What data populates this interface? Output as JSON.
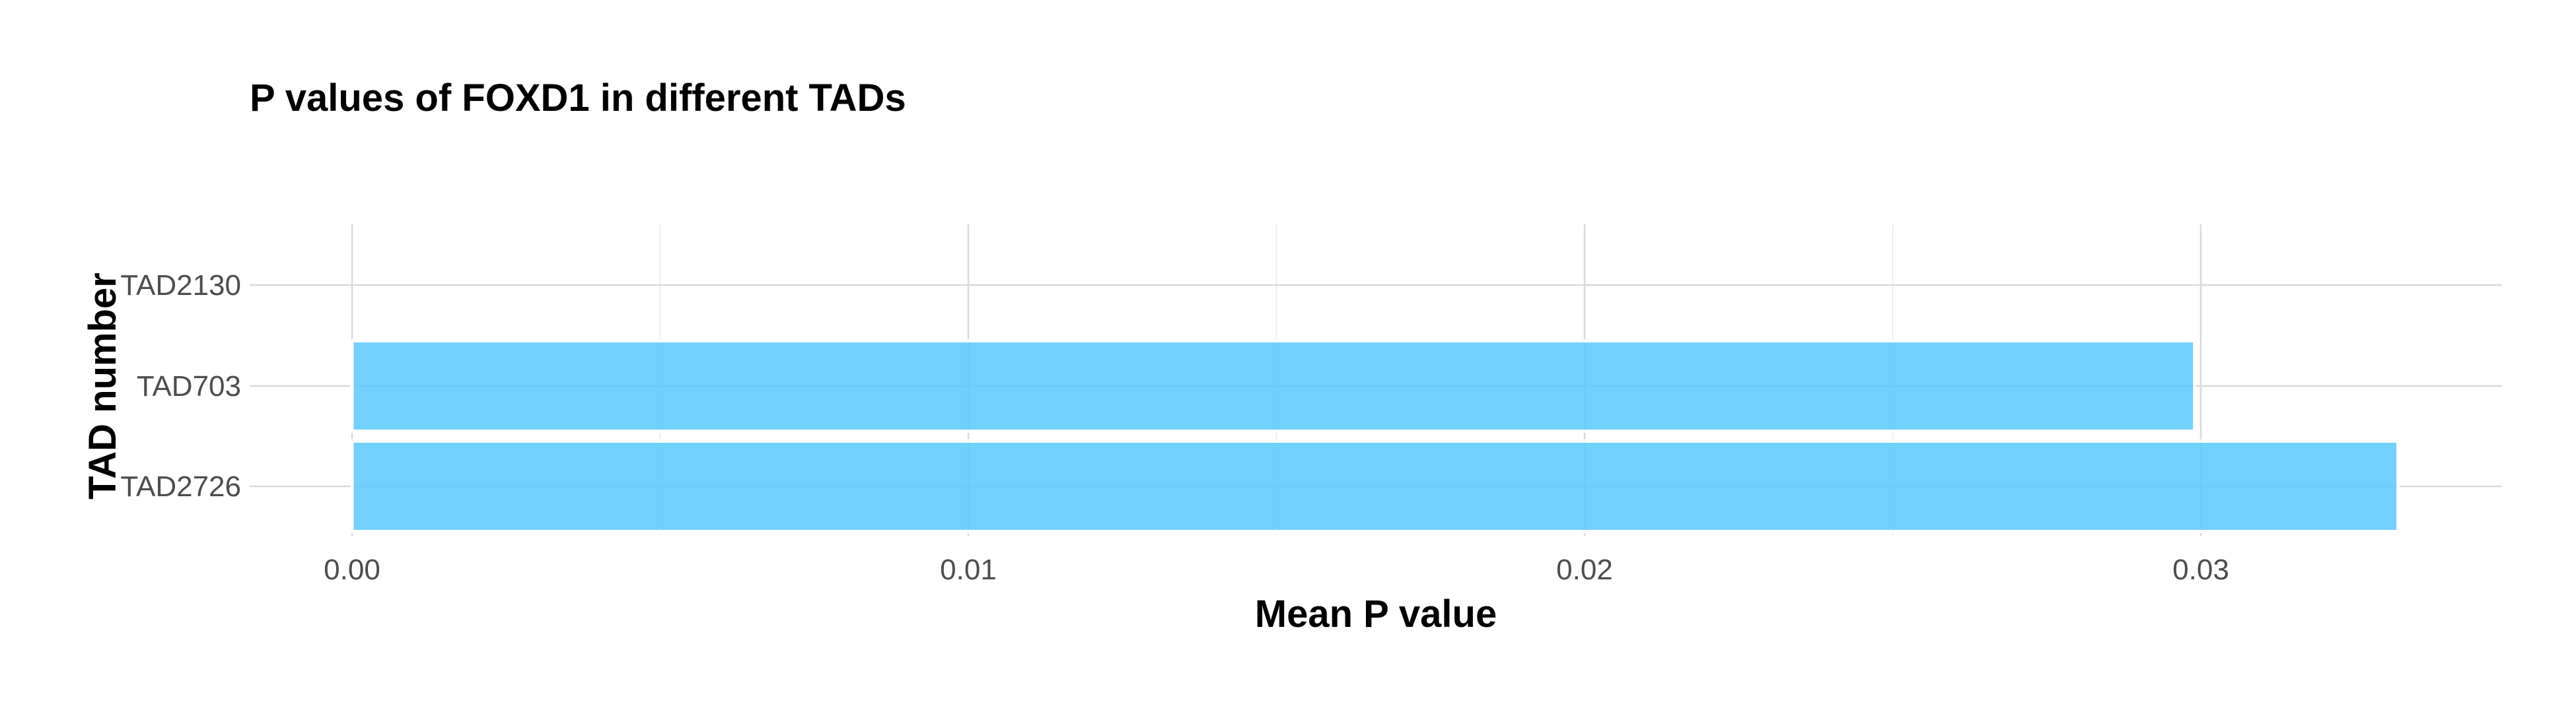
{
  "chart_data": {
    "type": "bar",
    "orientation": "horizontal",
    "title": "P values of FOXD1 in different TADs",
    "xlabel": "Mean P value",
    "ylabel": "TAD number",
    "categories": [
      "TAD2726",
      "TAD703",
      "TAD2130"
    ],
    "values": [
      0.0332,
      0.0299,
      0.0
    ],
    "xlim": [
      0,
      0.035
    ],
    "x_ticks": [
      0.0,
      0.01,
      0.02,
      0.03
    ],
    "x_tick_labels": [
      "0.00",
      "0.01",
      "0.02",
      "0.03"
    ],
    "grid": true,
    "bar_color": "#5BC8FB"
  }
}
